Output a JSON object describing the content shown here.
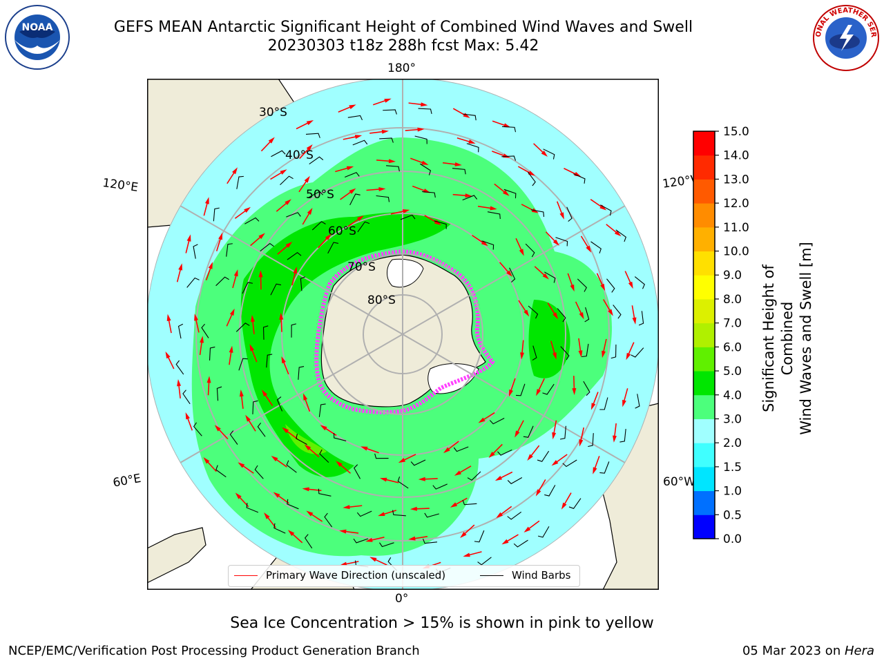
{
  "title": {
    "line1": "GEFS MEAN Antarctic Significant Height of Combined Wind Waves and Swell",
    "line2": "20230303 t18z 288h fcst   Max: 5.42"
  },
  "map": {
    "projection": "south-polar-stereographic",
    "longitude_labels": {
      "top": "180°",
      "bottom": "0°",
      "upper_left": "120°E",
      "lower_left": "60°E",
      "upper_right": "120°W",
      "lower_right": "60°W"
    },
    "latitude_labels": [
      "30°S",
      "40°S",
      "50°S",
      "60°S",
      "70°S",
      "80°S"
    ],
    "colors": {
      "land": "#efecd9",
      "coast": "#000000",
      "graticule": "#b0b0b0",
      "wave_arrow": "#ff0000",
      "wind_barb": "#000000"
    }
  },
  "legend": {
    "wave_direction": "Primary Wave Direction (unscaled)",
    "wind_barbs": "Wind Barbs"
  },
  "colorbar": {
    "label_line1": "Significant Height of Combined",
    "label_line2": "Wind Waves and Swell [m]",
    "ticks": [
      "0.0",
      "0.5",
      "1.0",
      "1.5",
      "2.0",
      "3.0",
      "4.0",
      "5.0",
      "6.0",
      "7.0",
      "8.0",
      "9.0",
      "10.0",
      "11.0",
      "12.0",
      "13.0",
      "14.0",
      "15.0"
    ],
    "colors": [
      "#0000ff",
      "#0070ff",
      "#00e5ff",
      "#40ffff",
      "#a0ffff",
      "#4cff7c",
      "#00e600",
      "#60f000",
      "#b0f000",
      "#dcf000",
      "#ffff00",
      "#ffe000",
      "#ffb000",
      "#ff8c00",
      "#ff5a00",
      "#ff2a00",
      "#ff0000"
    ]
  },
  "logos": {
    "noaa_text": "NOAA",
    "nws_text": "NATIONAL WEATHER SERVICE"
  },
  "footer": {
    "ice_note": "Sea Ice Concentration > 15% is shown in pink to yellow",
    "left": "NCEP/EMC/Verification Post Processing Product Generation Branch",
    "right_date": "05 Mar 2023 on ",
    "right_machine": "Hera"
  }
}
